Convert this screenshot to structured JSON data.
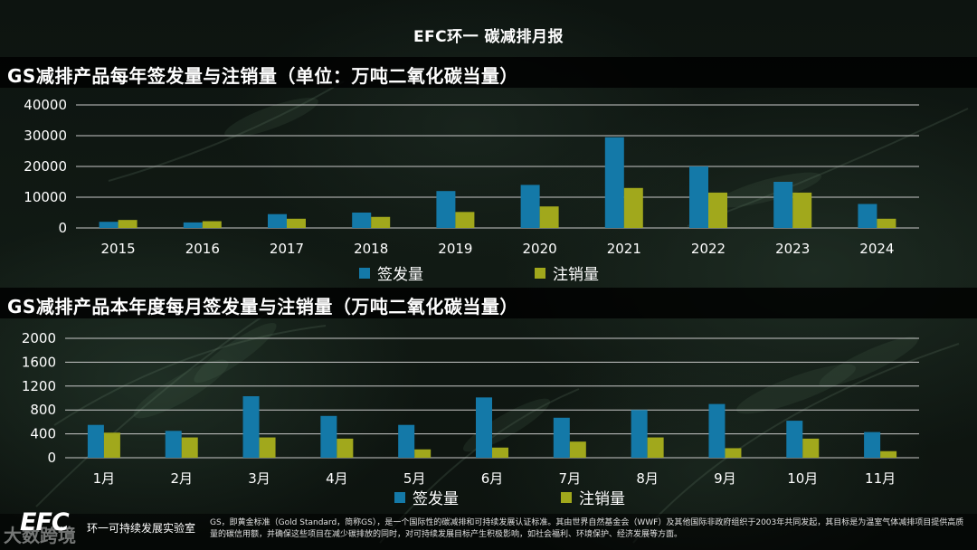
{
  "header": {
    "title": "EFC环一 碳减排月报"
  },
  "section1": {
    "title": "GS减排产品每年签发量与注销量（单位：万吨二氧化碳当量）"
  },
  "section2": {
    "title": "GS减排产品本年度每月签发量与注销量（万吨二氧化碳当量）"
  },
  "colors": {
    "issued": "#1479a8",
    "retired": "#a1a81c",
    "grid": "#c8c8c8"
  },
  "chart_data": [
    {
      "type": "bar",
      "categories": [
        "2015",
        "2016",
        "2017",
        "2018",
        "2019",
        "2020",
        "2021",
        "2022",
        "2023",
        "2024"
      ],
      "series": [
        {
          "name": "签发量",
          "values": [
            2000,
            1800,
            4500,
            5000,
            12000,
            14000,
            29500,
            20000,
            15000,
            7800
          ]
        },
        {
          "name": "注销量",
          "values": [
            2600,
            2200,
            3000,
            3600,
            5200,
            7000,
            13000,
            11500,
            11500,
            3000
          ]
        }
      ],
      "yticks": [
        "0",
        "10000",
        "20000",
        "30000",
        "40000"
      ],
      "ylim": [
        0,
        40000
      ],
      "grid": true,
      "legend": "bottom"
    },
    {
      "type": "bar",
      "categories": [
        "1月",
        "2月",
        "3月",
        "4月",
        "5月",
        "6月",
        "7月",
        "8月",
        "9月",
        "10月",
        "11月"
      ],
      "series": [
        {
          "name": "签发量",
          "values": [
            550,
            450,
            1030,
            700,
            550,
            1010,
            670,
            800,
            900,
            620,
            430
          ]
        },
        {
          "name": "注销量",
          "values": [
            420,
            340,
            340,
            320,
            140,
            170,
            270,
            340,
            160,
            320,
            110
          ]
        }
      ],
      "yticks": [
        "0",
        "400",
        "800",
        "1200",
        "1600",
        "2000"
      ],
      "ylim": [
        0,
        2000
      ],
      "grid": true,
      "legend": "bottom"
    }
  ],
  "footer": {
    "logo": "EFC",
    "lab_name": "环一可持续发展实验室",
    "watermark": "大数跨境",
    "note": "GS，即黄金标准（Gold Standard，简称GS），是一个国际性的碳减排和可持续发展认证标准。其由世界自然基金会（WWF）及其他国际非政府组织于2003年共同发起，其目标是为温室气体减排项目提供高质量的碳信用额，并确保这些项目在减少碳排放的同时，对可持续发展目标产生积极影响，如社会福利、环境保护、经济发展等方面。"
  }
}
